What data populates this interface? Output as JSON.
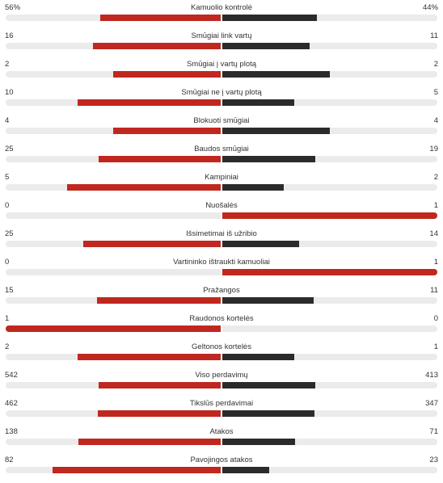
{
  "colors": {
    "home": "#c0271f",
    "away": "#2b2b2b",
    "track": "#ebebeb"
  },
  "stats": [
    {
      "label": "Kamuolio kontrolė",
      "home": "56%",
      "away": "44%",
      "home_value": 56,
      "away_value": 44
    },
    {
      "label": "Smūgiai link vartų",
      "home": "16",
      "away": "11",
      "home_value": 16,
      "away_value": 11
    },
    {
      "label": "Smūgiai į vartų plotą",
      "home": "2",
      "away": "2",
      "home_value": 2,
      "away_value": 2
    },
    {
      "label": "Smūgiai ne į vartų plotą",
      "home": "10",
      "away": "5",
      "home_value": 10,
      "away_value": 5
    },
    {
      "label": "Blokuoti smūgiai",
      "home": "4",
      "away": "4",
      "home_value": 4,
      "away_value": 4
    },
    {
      "label": "Baudos smūgiai",
      "home": "25",
      "away": "19",
      "home_value": 25,
      "away_value": 19
    },
    {
      "label": "Kampiniai",
      "home": "5",
      "away": "2",
      "home_value": 5,
      "away_value": 2
    },
    {
      "label": "Nuošalės",
      "home": "0",
      "away": "1",
      "home_value": 0,
      "away_value": 1
    },
    {
      "label": "Išsimetimai iš užribio",
      "home": "25",
      "away": "14",
      "home_value": 25,
      "away_value": 14
    },
    {
      "label": "Vartininko ištraukti kamuoliai",
      "home": "0",
      "away": "1",
      "home_value": 0,
      "away_value": 1
    },
    {
      "label": "Pražangos",
      "home": "15",
      "away": "11",
      "home_value": 15,
      "away_value": 11
    },
    {
      "label": "Raudonos kortelės",
      "home": "1",
      "away": "0",
      "home_value": 1,
      "away_value": 0
    },
    {
      "label": "Geltonos kortelės",
      "home": "2",
      "away": "1",
      "home_value": 2,
      "away_value": 1
    },
    {
      "label": "Viso perdavimų",
      "home": "542",
      "away": "413",
      "home_value": 542,
      "away_value": 413
    },
    {
      "label": "Tikslūs perdavimai",
      "home": "462",
      "away": "347",
      "home_value": 462,
      "away_value": 347
    },
    {
      "label": "Atakos",
      "home": "138",
      "away": "71",
      "home_value": 138,
      "away_value": 71
    },
    {
      "label": "Pavojingos atakos",
      "home": "82",
      "away": "23",
      "home_value": 82,
      "away_value": 23
    }
  ]
}
